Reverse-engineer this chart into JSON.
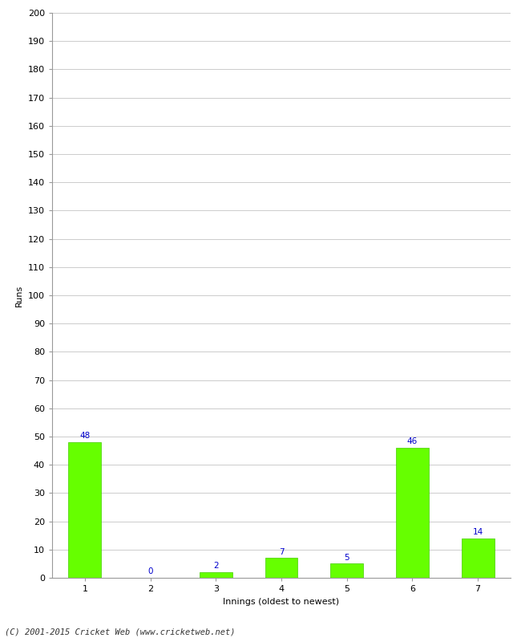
{
  "categories": [
    "1",
    "2",
    "3",
    "4",
    "5",
    "6",
    "7"
  ],
  "values": [
    48,
    0,
    2,
    7,
    5,
    46,
    14
  ],
  "bar_color": "#66ff00",
  "bar_edge_color": "#44cc00",
  "label_color": "#0000cc",
  "xlabel": "Innings (oldest to newest)",
  "ylabel": "Runs",
  "ylim": [
    0,
    200
  ],
  "yticks": [
    0,
    10,
    20,
    30,
    40,
    50,
    60,
    70,
    80,
    90,
    100,
    110,
    120,
    130,
    140,
    150,
    160,
    170,
    180,
    190,
    200
  ],
  "footer": "(C) 2001-2015 Cricket Web (www.cricketweb.net)",
  "background_color": "#ffffff",
  "grid_color": "#cccccc",
  "label_fontsize": 7.5,
  "axis_label_fontsize": 8,
  "tick_fontsize": 8,
  "footer_fontsize": 7.5,
  "bar_width": 0.5
}
